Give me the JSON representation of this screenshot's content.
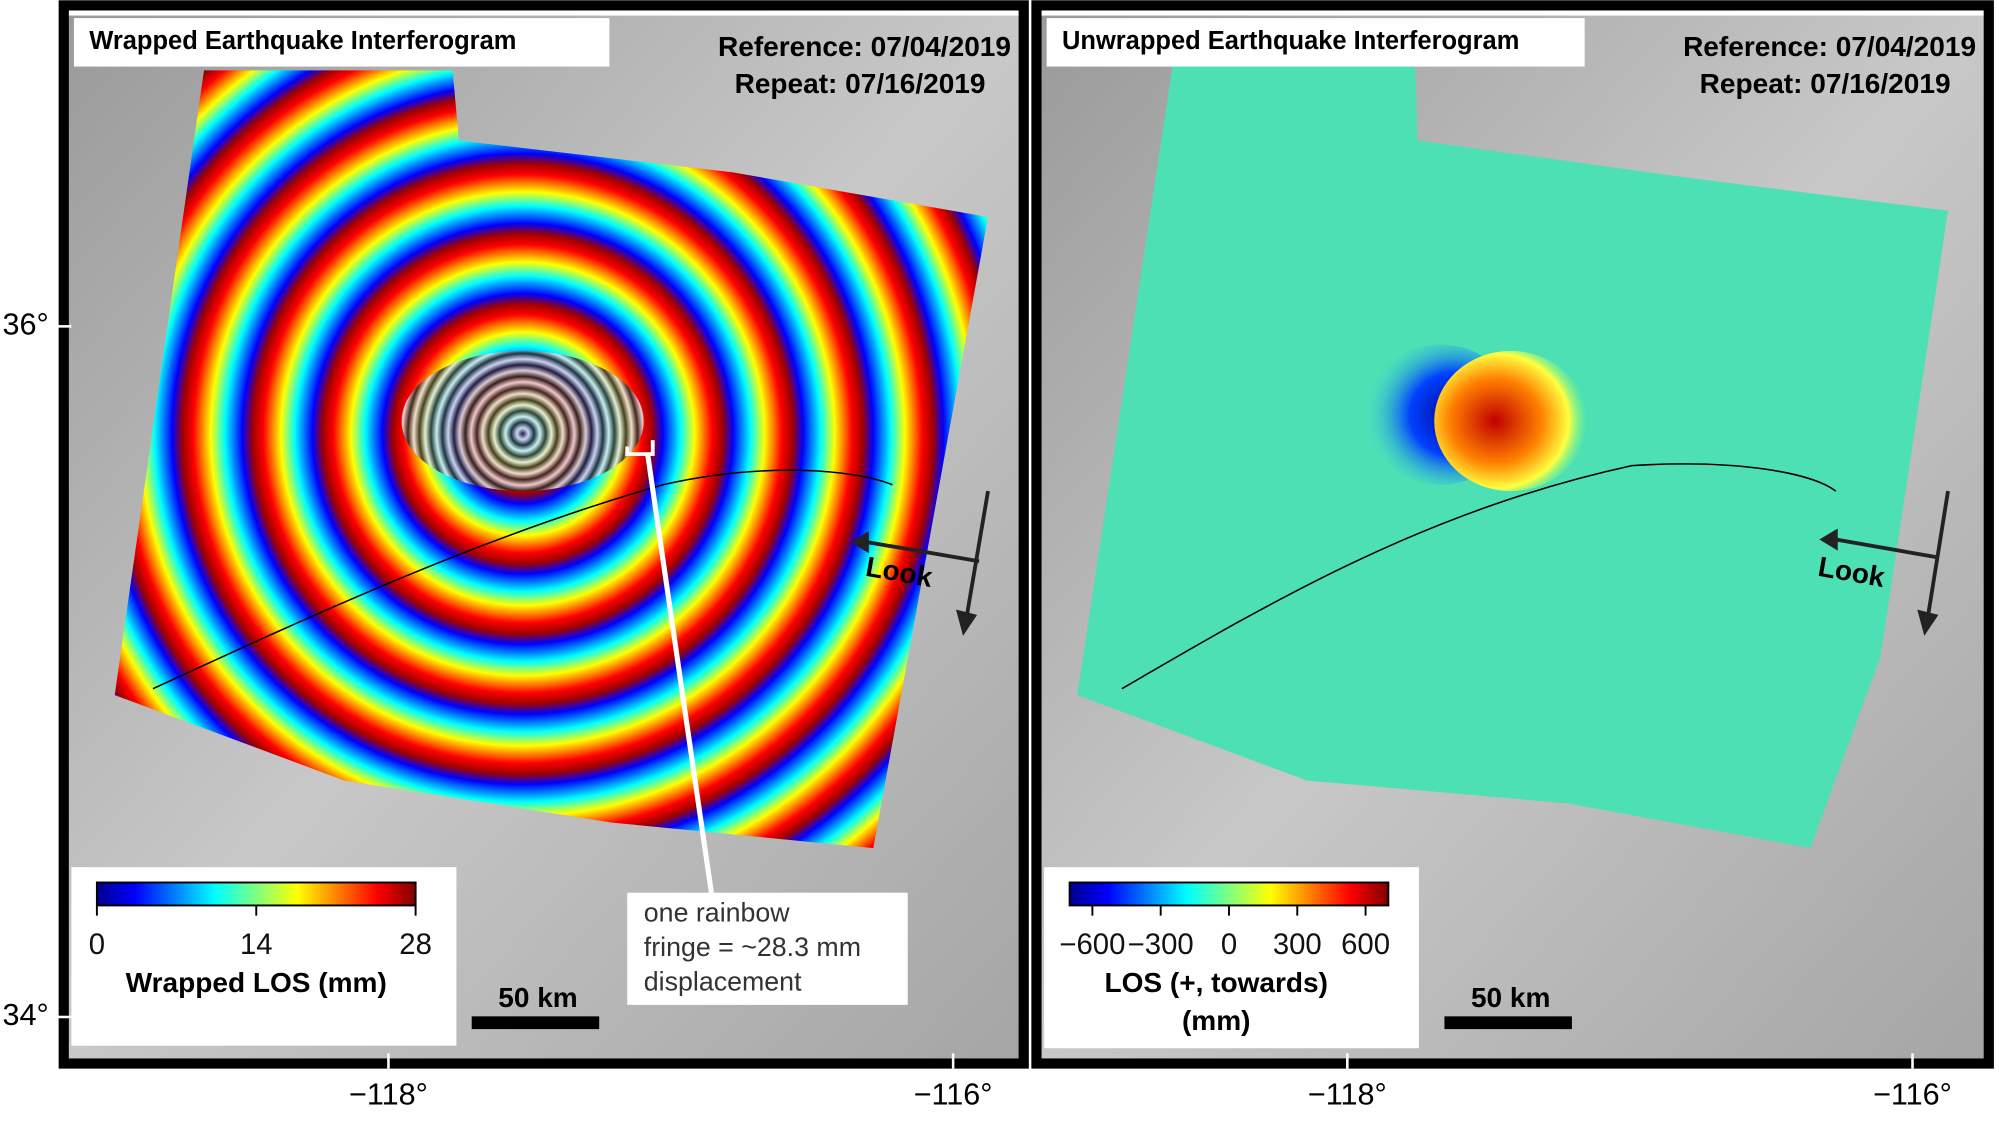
{
  "ylim": [
    33.88,
    36.9
  ],
  "yticks": [
    {
      "value": 36,
      "label": "36°"
    },
    {
      "value": 34,
      "label": "34°"
    }
  ],
  "panels": [
    {
      "title": "Wrapped Earthquake Interferogram",
      "reference": "Reference: 07/04/2019",
      "repeat": "Repeat: 07/16/2019",
      "xlim": [
        -119.15,
        -115.75
      ],
      "xticks": [
        {
          "value": -118,
          "label": "−118°"
        },
        {
          "value": -116,
          "label": "−116°"
        }
      ],
      "colorbar": {
        "label": [
          "Wrapped LOS (mm)"
        ],
        "lim": [
          0,
          28
        ],
        "ticks": [
          0,
          14,
          28
        ]
      },
      "scale_bar": "50 km",
      "look": "Look",
      "annotation": [
        "one rainbow",
        "fringe = ~28.3 mm",
        "displacement"
      ]
    },
    {
      "title": "Unwrapped Earthquake Interferogram",
      "reference": "Reference: 07/04/2019",
      "repeat": "Repeat: 07/16/2019",
      "xlim": [
        -119.1,
        -115.73
      ],
      "xticks": [
        {
          "value": -118,
          "label": "−118°"
        },
        {
          "value": -116,
          "label": "−116°"
        }
      ],
      "colorbar": {
        "label": [
          "LOS (+, towards)",
          "(mm)"
        ],
        "lim": [
          -700,
          700
        ],
        "ticks": [
          {
            "value": -600,
            "label": "−600"
          },
          {
            "value": -300,
            "label": "−300"
          },
          0,
          300,
          600
        ]
      },
      "scale_bar": "50 km",
      "look": "Look"
    }
  ]
}
